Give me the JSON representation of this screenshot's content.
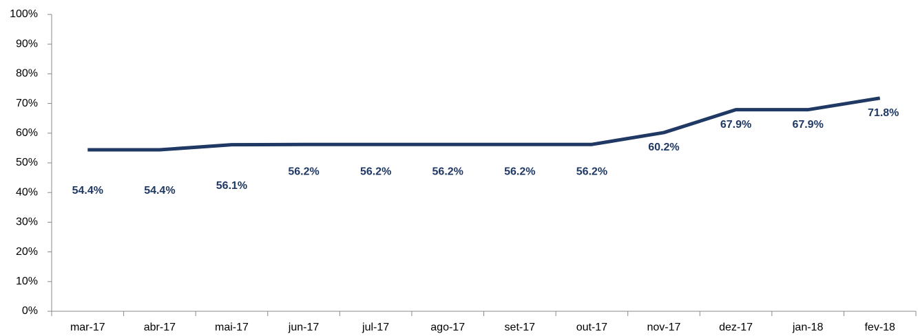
{
  "chart_data": {
    "type": "line",
    "categories": [
      "mar-17",
      "abr-17",
      "mai-17",
      "jun-17",
      "jul-17",
      "ago-17",
      "set-17",
      "out-17",
      "nov-17",
      "dez-17",
      "jan-18",
      "fev-18"
    ],
    "values": [
      54.4,
      54.4,
      56.1,
      56.2,
      56.2,
      56.2,
      56.2,
      56.2,
      60.2,
      67.9,
      67.9,
      71.8
    ],
    "value_labels": [
      "54.4%",
      "54.4%",
      "56.1%",
      "56.2%",
      "56.2%",
      "56.2%",
      "56.2%",
      "56.2%",
      "60.2%",
      "67.9%",
      "67.9%",
      "71.8%"
    ],
    "color": "#1f3864",
    "ylim": [
      0,
      100
    ],
    "yticks": [
      {
        "value": 0,
        "label": "0%"
      },
      {
        "value": 10,
        "label": "10%"
      },
      {
        "value": 20,
        "label": "20%"
      },
      {
        "value": 30,
        "label": "30%"
      },
      {
        "value": 40,
        "label": "40%"
      },
      {
        "value": 50,
        "label": "50%"
      },
      {
        "value": 60,
        "label": "60%"
      },
      {
        "value": 70,
        "label": "70%"
      },
      {
        "value": 80,
        "label": "80%"
      },
      {
        "value": 90,
        "label": "90%"
      },
      {
        "value": 100,
        "label": "100%"
      }
    ],
    "grid": false
  }
}
